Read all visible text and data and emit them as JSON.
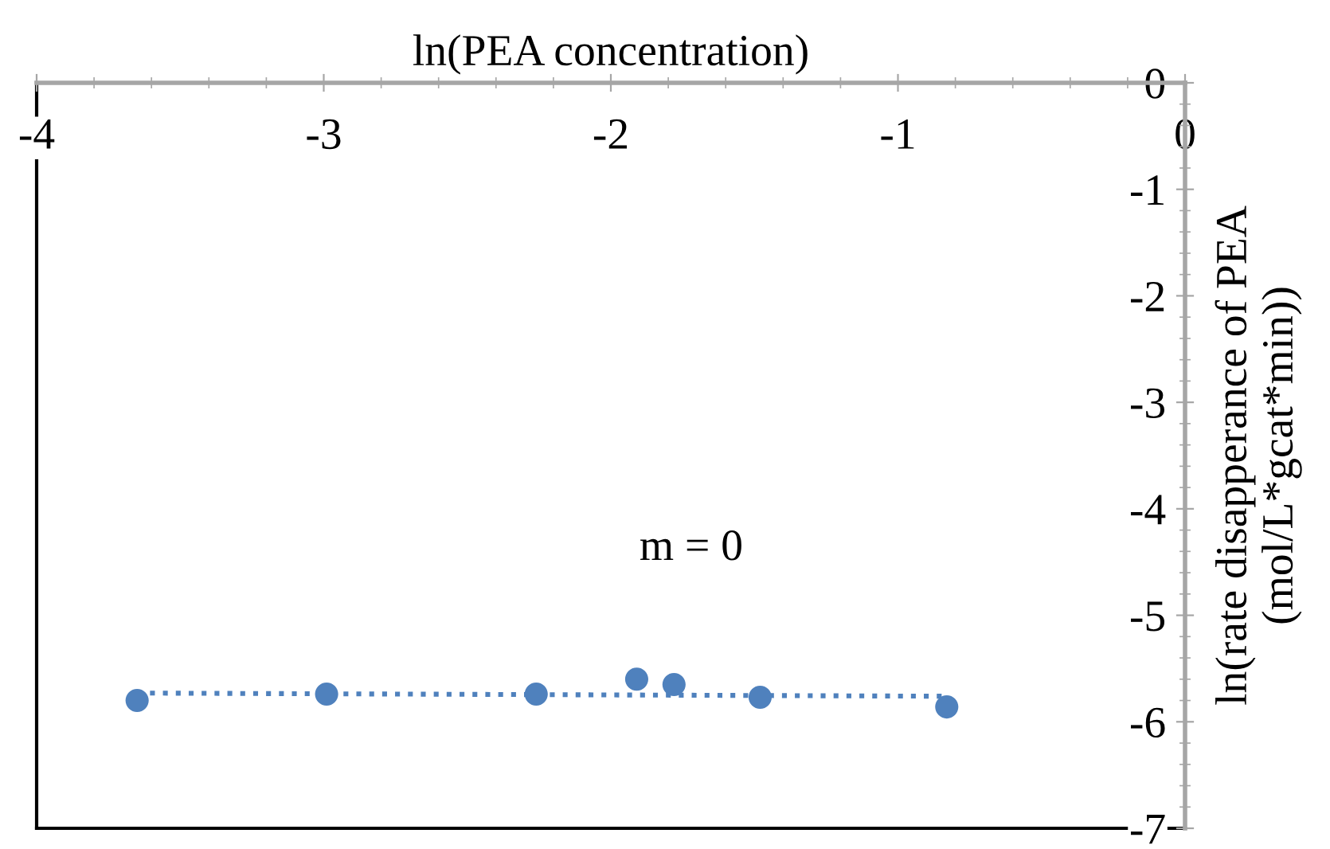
{
  "chart_data": {
    "type": "scatter",
    "xlabel": "ln(PEA concentration)",
    "ylabel": "ln(rate disapperance of PEA\n(mol/L*gcat*min))",
    "xlim": [
      -4,
      0
    ],
    "ylim": [
      -7,
      0
    ],
    "xticks": [
      -4,
      -3,
      -2,
      -1,
      0
    ],
    "yticks": [
      -7,
      -6,
      -5,
      -4,
      -3,
      -2,
      -1,
      0
    ],
    "marker": "circle",
    "grid": false,
    "legend": false,
    "annotations": [
      "m = 0"
    ],
    "series": [
      {
        "color": "#4f81bd",
        "x": [
          -3.65,
          -2.99,
          -2.26,
          -1.91,
          -1.78,
          -1.48,
          -0.83
        ],
        "values": [
          -5.8,
          -5.74,
          -5.74,
          -5.6,
          -5.65,
          -5.77,
          -5.86
        ]
      },
      {
        "type": "line",
        "color": "#4f81bd",
        "line_style": "dotted",
        "marker": "none",
        "x": [
          -3.65,
          -0.83
        ],
        "values": [
          -5.73,
          -5.76
        ]
      }
    ]
  }
}
